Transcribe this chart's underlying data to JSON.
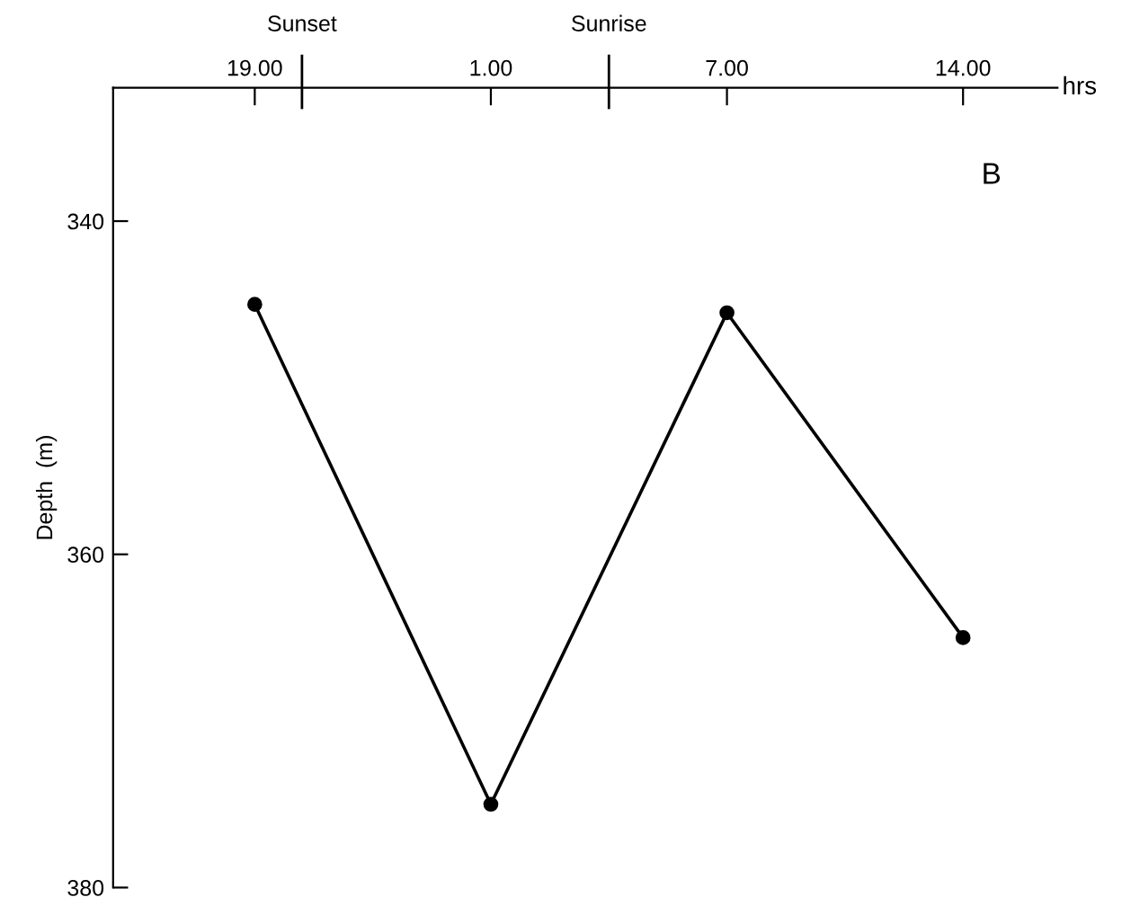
{
  "chart_data": {
    "type": "line",
    "xlabel": "hrs",
    "ylabel": "Depth  (m)",
    "categories": [
      "19.00",
      "1.00",
      "7.00",
      "14.00"
    ],
    "values": [
      345,
      375,
      345.5,
      365
    ],
    "color": "#000000",
    "marker": "circle",
    "line_style": "solid",
    "ylim": [
      380,
      332
    ],
    "yticks": [
      340,
      360,
      380
    ],
    "annotations": [
      "B",
      "Sunset",
      "Sunrise"
    ],
    "grid": false,
    "legend": false
  }
}
